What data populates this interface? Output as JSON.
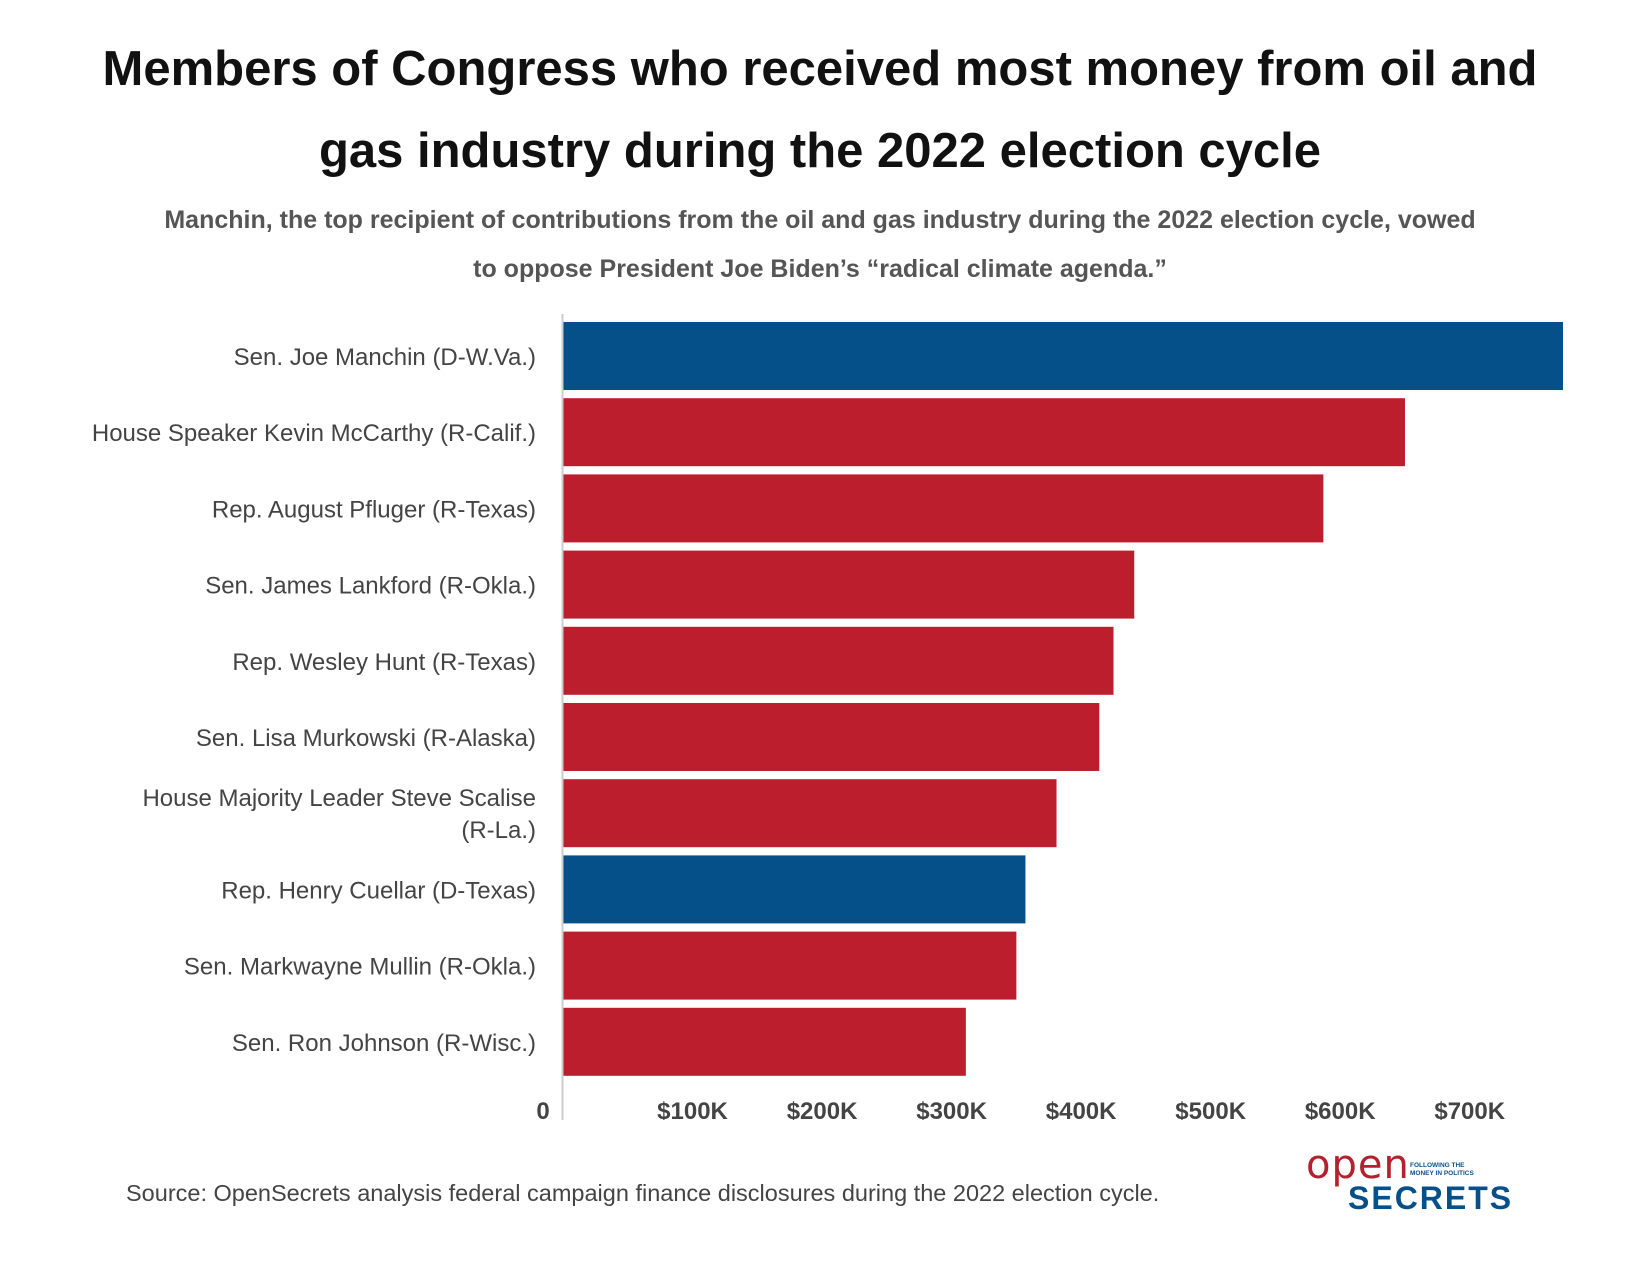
{
  "chart_data": {
    "type": "bar",
    "orientation": "horizontal",
    "title": "Members of Congress who received most money from oil and gas industry during the 2022 election cycle",
    "subtitle": "Manchin, the top recipient of contributions from the oil and gas industry during the 2022 election cycle, vowed to oppose President Joe Biden’s “radical climate agenda.”",
    "categories": [
      "Sen. Joe Manchin (D-W.Va.)",
      "House Speaker Kevin McCarthy (R-Calif.)",
      "Rep. August Pfluger (R-Texas)",
      "Sen. James Lankford (R-Okla.)",
      "Rep. Wesley Hunt (R-Texas)",
      "Sen. Lisa Murkowski (R-Alaska)",
      "House Majority Leader Steve Scalise (R-La.)",
      "Rep. Henry Cuellar (D-Texas)",
      "Sen. Markwayne Mullin (R-Okla.)",
      "Sen. Ron Johnson (R-Wisc.)"
    ],
    "values": [
      772000,
      650000,
      587000,
      441000,
      425000,
      414000,
      381000,
      357000,
      350000,
      311000
    ],
    "party": [
      "D",
      "R",
      "R",
      "R",
      "R",
      "R",
      "R",
      "D",
      "R",
      "R"
    ],
    "colors": {
      "D": "#06508a",
      "R": "#bd1e2d"
    },
    "xlim": [
      0,
      772000
    ],
    "xticks": [
      0,
      100000,
      200000,
      300000,
      400000,
      500000,
      600000,
      700000
    ],
    "xtick_labels": [
      "0",
      "$100K",
      "$200K",
      "$300K",
      "$400K",
      "$500K",
      "$600K",
      "$700K"
    ],
    "xlabel": "",
    "ylabel": "",
    "source": "Source: OpenSecrets analysis federal campaign finance disclosures during the 2022 election cycle."
  },
  "logo": {
    "open": "open",
    "secrets": "SECRETS",
    "tagline": "FOLLOWING THE MONEY IN POLITICS"
  }
}
